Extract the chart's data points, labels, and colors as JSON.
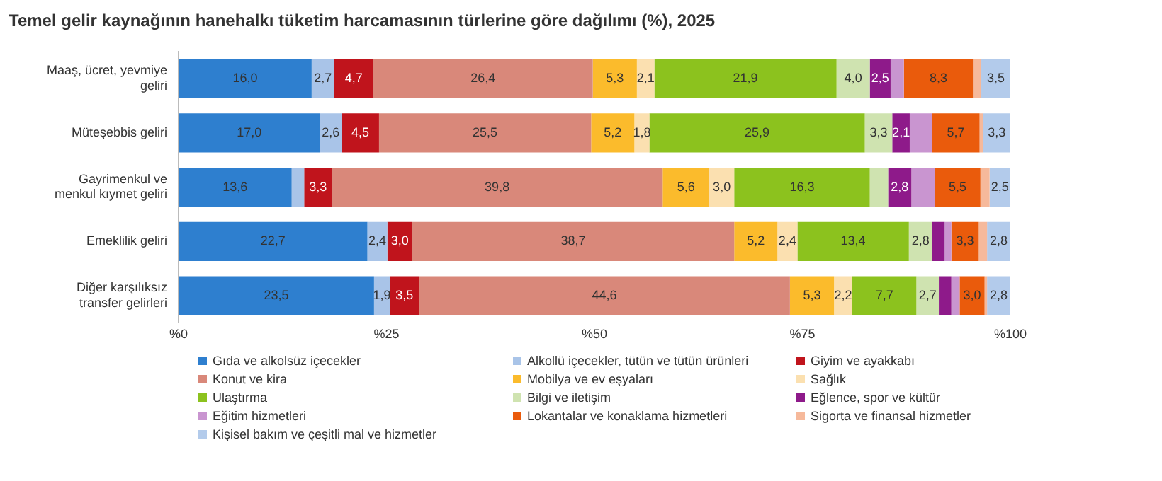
{
  "chart_data": {
    "type": "bar",
    "orientation": "horizontal",
    "stacked": true,
    "title": "Temel gelir kaynağının hanehalkı tüketim harcamasının türlerine göre dağılımı (%), 2025",
    "categories": [
      "Maaş, ücret, yevmiye geliri",
      "Müteşebbis geliri",
      "Gayrimenkul ve menkul kıymet geliri",
      "Emeklilik geliri",
      "Diğer karşılıksız transfer gelirleri"
    ],
    "xlim": [
      0,
      100
    ],
    "xticks": [
      {
        "value": 0,
        "label": "%0"
      },
      {
        "value": 25,
        "label": "%25"
      },
      {
        "value": 50,
        "label": "%50"
      },
      {
        "value": 75,
        "label": "%75"
      },
      {
        "value": 100,
        "label": "%100"
      }
    ],
    "grid": false,
    "legend": "bottom",
    "series": [
      {
        "name": "Gıda ve alkolsüz içecekler",
        "color": "#2e7fcf",
        "values": [
          16.0,
          17.0,
          13.6,
          22.7,
          23.5
        ],
        "value_labels": [
          "16,0",
          "17,0",
          "13,6",
          "22,7",
          "23,5"
        ]
      },
      {
        "name": "Alkollü içecekler, tütün ve tütün ürünleri",
        "color": "#a9c4e8",
        "values": [
          2.7,
          2.6,
          1.5,
          2.4,
          1.9
        ],
        "value_labels": [
          "2,7",
          "2,6",
          null,
          "2,4",
          "1,9"
        ]
      },
      {
        "name": "Giyim ve ayakkabı",
        "color": "#c0141c",
        "values": [
          4.7,
          4.5,
          3.3,
          3.0,
          3.5
        ],
        "value_labels": [
          "4,7",
          "4,5",
          "3,3",
          "3,0",
          "3,5"
        ]
      },
      {
        "name": "Konut ve kira",
        "color": "#d9887a",
        "values": [
          26.4,
          25.5,
          39.8,
          38.7,
          44.6
        ],
        "value_labels": [
          "26,4",
          "25,5",
          "39,8",
          "38,7",
          "44,6"
        ]
      },
      {
        "name": "Mobilya ve ev eşyaları",
        "color": "#fbbb2c",
        "values": [
          5.3,
          5.2,
          5.6,
          5.2,
          5.3
        ],
        "value_labels": [
          "5,3",
          "5,2",
          "5,6",
          "5,2",
          "5,3"
        ]
      },
      {
        "name": "Sağlık",
        "color": "#fbe0b0",
        "values": [
          2.1,
          1.8,
          3.0,
          2.4,
          2.2
        ],
        "value_labels": [
          "2,1",
          "1,8",
          "3,0",
          "2,4",
          "2,2"
        ]
      },
      {
        "name": "Ulaştırma",
        "color": "#8cc21e",
        "values": [
          21.9,
          25.9,
          16.3,
          13.4,
          7.7
        ],
        "value_labels": [
          "21,9",
          "25,9",
          "16,3",
          "13,4",
          "7,7"
        ]
      },
      {
        "name": "Bilgi ve iletişim",
        "color": "#cfe3b0",
        "values": [
          4.0,
          3.3,
          2.2,
          2.8,
          2.7
        ],
        "value_labels": [
          "4,0",
          "3,3",
          null,
          "2,8",
          "2,7"
        ]
      },
      {
        "name": "Eğlence, spor ve kültür",
        "color": "#8e1a8a",
        "values": [
          2.5,
          2.1,
          2.8,
          1.5,
          1.5
        ],
        "value_labels": [
          "2,5",
          "2,1",
          "2,8",
          null,
          null
        ]
      },
      {
        "name": "Eğitim hizmetleri",
        "color": "#c995d0",
        "values": [
          1.6,
          2.7,
          2.8,
          0.8,
          1.0
        ],
        "value_labels": [
          null,
          null,
          null,
          null,
          null
        ]
      },
      {
        "name": "Lokantalar ve konaklama hizmetleri",
        "color": "#ea5b0c",
        "values": [
          8.3,
          5.7,
          5.5,
          3.3,
          3.0
        ],
        "value_labels": [
          "8,3",
          "5,7",
          "5,5",
          "3,3",
          "3,0"
        ]
      },
      {
        "name": "Sigorta ve finansal hizmetler",
        "color": "#f6b99b",
        "values": [
          1.0,
          0.4,
          1.1,
          1.0,
          0.3
        ],
        "value_labels": [
          null,
          null,
          null,
          null,
          null
        ]
      },
      {
        "name": "Kişisel bakım ve çeşitli mal ve hizmetler",
        "color": "#b3cbeb",
        "values": [
          3.5,
          3.3,
          2.5,
          2.8,
          2.8
        ],
        "value_labels": [
          "3,5",
          "3,3",
          "2,5",
          "2,8",
          "2,8"
        ]
      }
    ]
  }
}
